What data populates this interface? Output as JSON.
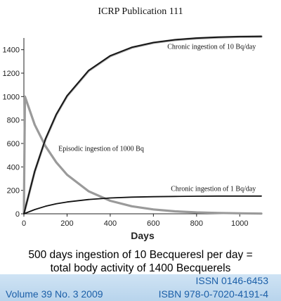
{
  "header": {
    "publication": "ICRP Publication 111"
  },
  "caption": {
    "line1": "500 days ingestion of 10 Becqueresl per day =",
    "line2": "total body activity of 1400 Becquerels"
  },
  "footer": {
    "issn": "ISSN 0146-6453",
    "volume": "Volume 39 No. 3 2009",
    "isbn": "ISBN 978-0-7020-4191-4"
  },
  "colors": {
    "footer_text": "#1b5fa8",
    "footer_band": "#c4dcf0",
    "dark_curve": "#111111",
    "grey_curve": "#9a9a9a"
  },
  "chart_data": {
    "type": "line",
    "title": "",
    "xlabel": "Days",
    "ylabel": "",
    "xlim": [
      0,
      1100
    ],
    "ylim": [
      0,
      1500
    ],
    "xticks": [
      0,
      200,
      400,
      600,
      800,
      1000
    ],
    "yticks": [
      0,
      200,
      400,
      600,
      800,
      1000,
      1200,
      1400
    ],
    "grid": false,
    "annotations": [
      {
        "text": "Chronic ingestion of 10 Bq/day",
        "x": 1075,
        "y": 1430
      },
      {
        "text": "Episodic ingestion of 1000 Bq",
        "x": 160,
        "y": 560
      },
      {
        "text": "Chronic ingestion of 1 Bq/day",
        "x": 1075,
        "y": 220
      }
    ],
    "series": [
      {
        "style": "dark",
        "x": [
          0,
          50,
          100,
          150,
          200,
          300,
          400,
          500,
          600,
          700,
          800,
          900,
          1000,
          1100
        ],
        "values": [
          0,
          362,
          638,
          848,
          1007,
          1223,
          1348,
          1420,
          1461,
          1485,
          1499,
          1507,
          1512,
          1514
        ]
      },
      {
        "style": "grey",
        "x": [
          0,
          50,
          100,
          150,
          200,
          300,
          400,
          500,
          600,
          700,
          800,
          900,
          1000,
          1100
        ],
        "values": [
          0,
          360,
          635,
          845,
          1004,
          1220,
          1345,
          1418,
          1459,
          1483,
          1497,
          1505,
          1510,
          1512
        ]
      },
      {
        "style": "grey",
        "x": [
          0,
          5,
          50,
          100,
          150,
          200,
          300,
          400,
          500,
          600,
          700,
          800,
          900,
          1000,
          1100
        ],
        "values": [
          0,
          1000,
          760,
          577,
          439,
          333,
          192,
          111,
          64,
          37,
          21,
          12,
          7,
          4,
          2
        ]
      },
      {
        "style": "dark",
        "x": [
          0,
          50,
          100,
          150,
          200,
          300,
          400,
          500,
          600,
          700,
          800,
          900,
          1000,
          1100
        ],
        "values": [
          0,
          36,
          64,
          85,
          101,
          122,
          135,
          142,
          146,
          148,
          150,
          151,
          151,
          151
        ]
      }
    ]
  }
}
